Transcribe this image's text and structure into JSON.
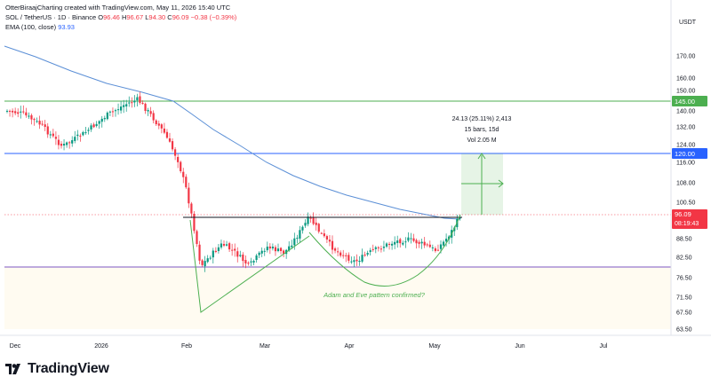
{
  "header": {
    "line1_prefix": "OtterBiraajCharting created with TradingView.com, May 11, 2026 15:40 UTC",
    "symbol": "SOL / TetherUS · 1D · Binance",
    "o_label": "O",
    "o_value": "96.46",
    "h_label": "H",
    "h_value": "96.67",
    "l_label": "L",
    "l_value": "94.30",
    "c_label": "C",
    "c_value": "96.09",
    "change": "−0.38 (−0.39%)",
    "ema_label": "EMA (100, close)",
    "ema_value": "93.93"
  },
  "currency": "USDT",
  "colors": {
    "up": "#089981",
    "down": "#f23645",
    "ema": "#5b8fd6",
    "level_green": "#4caf50",
    "level_blue": "#2962ff",
    "support_purple": "#7e57c2",
    "price_label": "#f23645"
  },
  "chart_data": {
    "type": "candlestick",
    "y_ticks": [
      "170.00",
      "160.00",
      "150.00",
      "140.00",
      "132.00",
      "124.00",
      "116.00",
      "108.00",
      "100.50",
      "88.50",
      "82.50",
      "76.50",
      "71.50",
      "67.50",
      "63.50"
    ],
    "x_ticks": [
      "Dec",
      "2026",
      "Feb",
      "Mar",
      "Apr",
      "May",
      "Jun",
      "Jul"
    ],
    "levels": [
      {
        "label": "145.00",
        "color": "#4caf50"
      },
      {
        "label": "120.00",
        "color": "#2962ff"
      }
    ],
    "last_price": "96.09",
    "countdown": "08:19:43",
    "measure": {
      "line1": "24.13 (25.11%) 2,413",
      "line2": "15 bars, 15d",
      "line3": "Vol 2.05 M"
    },
    "annotation": "Adam and Eve pattern confirmed?"
  },
  "footer": {
    "logo_icon": "tradingview-logo-icon",
    "logo_text": "TradingView"
  }
}
